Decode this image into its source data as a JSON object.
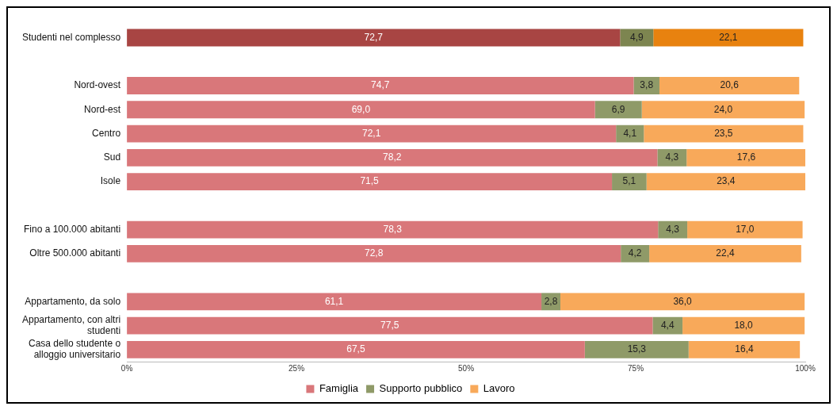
{
  "chart_data": {
    "type": "bar",
    "orientation": "horizontal",
    "stacked": true,
    "categories": [
      "Studenti nel complesso",
      null,
      "Nord-ovest",
      "Nord-est",
      "Centro",
      "Sud",
      "Isole",
      null,
      "Fino a 100.000 abitanti",
      "Oltre 500.000 abitanti",
      null,
      "Appartamento, da solo",
      "Appartamento, con altri studenti",
      "Casa dello studente o alloggio universitario"
    ],
    "series": [
      {
        "name": "Famiglia",
        "color": "#d9777a",
        "colors": [
          "#a84543",
          null,
          "#d9777a",
          "#d9777a",
          "#d9777a",
          "#d9777a",
          "#d9777a",
          null,
          "#d9777a",
          "#d9777a",
          null,
          "#d9777a",
          "#d9777a",
          "#d9777a"
        ],
        "values": [
          72.7,
          null,
          74.7,
          69.0,
          72.1,
          78.2,
          71.5,
          null,
          78.3,
          72.8,
          null,
          61.1,
          77.5,
          67.5
        ],
        "value_labels": [
          "72,7",
          null,
          "74,7",
          "69,0",
          "72,1",
          "78,2",
          "71,5",
          null,
          "78,3",
          "72,8",
          null,
          "61,1",
          "77,5",
          "67,5"
        ]
      },
      {
        "name": "Supporto pubblico",
        "color": "#8f9a68",
        "colors": [
          "#7d8550",
          null,
          "#8f9a68",
          "#8f9a68",
          "#8f9a68",
          "#8f9a68",
          "#8f9a68",
          null,
          "#8f9a68",
          "#8f9a68",
          null,
          "#8f9a68",
          "#8f9a68",
          "#8f9a68"
        ],
        "values": [
          4.9,
          null,
          3.8,
          6.9,
          4.1,
          4.3,
          5.1,
          null,
          4.3,
          4.2,
          null,
          2.8,
          4.4,
          15.3
        ],
        "value_labels": [
          "4,9",
          null,
          "3,8",
          "6,9",
          "4,1",
          "4,3",
          "5,1",
          null,
          "4,3",
          "4,2",
          null,
          "2,8",
          "4,4",
          "15,3"
        ]
      },
      {
        "name": "Lavoro",
        "color": "#f8a95a",
        "colors": [
          "#e8820f",
          null,
          "#f8a95a",
          "#f8a95a",
          "#f8a95a",
          "#f8a95a",
          "#f8a95a",
          null,
          "#f8a95a",
          "#f8a95a",
          null,
          "#f8a95a",
          "#f8a95a",
          "#f8a95a"
        ],
        "values": [
          22.1,
          null,
          20.6,
          24.0,
          23.5,
          17.6,
          23.4,
          null,
          17.0,
          22.4,
          null,
          36.0,
          18.0,
          16.4
        ],
        "value_labels": [
          "22,1",
          null,
          "20,6",
          "24,0",
          "23,5",
          "17,6",
          "23,4",
          null,
          "17,0",
          "22,4",
          null,
          "36,0",
          "18,0",
          "16,4"
        ]
      }
    ],
    "xlim": [
      0,
      100
    ],
    "xticks": [
      {
        "value": 0,
        "label": "0%"
      },
      {
        "value": 25,
        "label": "25%"
      },
      {
        "value": 50,
        "label": "50%"
      },
      {
        "value": 75,
        "label": "75%"
      },
      {
        "value": 100,
        "label": "100%"
      }
    ],
    "grid": false,
    "legend": "bottom"
  }
}
